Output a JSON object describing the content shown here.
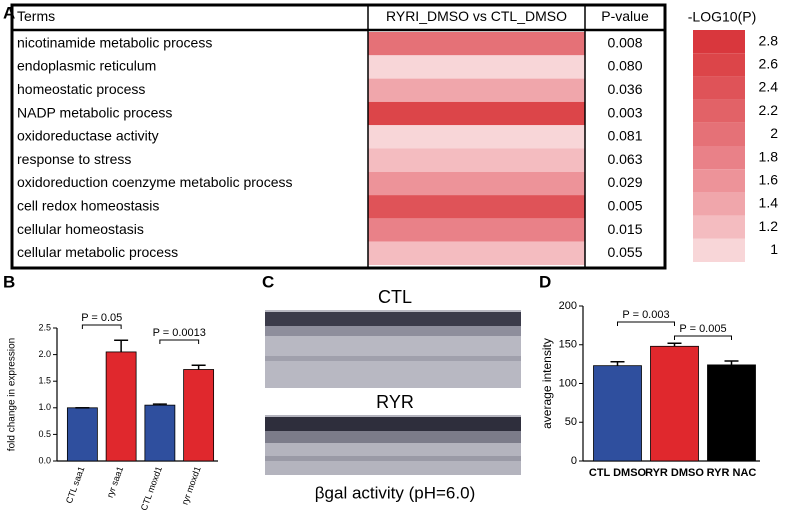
{
  "panel_labels": [
    "A",
    "B",
    "C",
    "D"
  ],
  "table": {
    "header": [
      "Terms",
      "RYRI_DMSO vs CTL_DMSO",
      "P-value"
    ],
    "rows": [
      [
        "nicotinamide metabolic process",
        "0.008"
      ],
      [
        "endoplasmic reticulum",
        "0.080"
      ],
      [
        "homeostatic process",
        "0.036"
      ],
      [
        "NADP metabolic process",
        "0.003"
      ],
      [
        "oxidoreductase activity",
        "0.081"
      ],
      [
        "response to stress",
        "0.063"
      ],
      [
        "oxidoreduction coenzyme metabolic process",
        "0.029"
      ],
      [
        "cell redox homeostasis",
        "0.005"
      ],
      [
        "cellular homeostasis",
        "0.015"
      ],
      [
        "cellular metabolic process",
        "0.055"
      ]
    ]
  },
  "legend": {
    "title": "-LOG10(P)",
    "items": [
      {
        "value": 2.8,
        "color": "#d9373d"
      },
      {
        "value": 2.6,
        "color": "#dc4549"
      },
      {
        "value": 2.4,
        "color": "#df5358"
      },
      {
        "value": 2.2,
        "color": "#e26267"
      },
      {
        "value": 2,
        "color": "#e57177"
      },
      {
        "value": 1.8,
        "color": "#e98188"
      },
      {
        "value": 1.6,
        "color": "#ed9399"
      },
      {
        "value": 1.4,
        "color": "#f0a6ab"
      },
      {
        "value": 1.2,
        "color": "#f4bcc0"
      },
      {
        "value": 1,
        "color": "#f8d6d8"
      }
    ]
  },
  "image_panel": {
    "labels": [
      "CTL",
      "RYR"
    ],
    "caption": "βgal activity (pH=6.0)"
  },
  "chart_data": [
    {
      "type": "bar",
      "ylabel": "fold change in expression",
      "categories": [
        "CTL saa1",
        "ryr saa1",
        "CTL moxd1",
        "ryr moxd1"
      ],
      "values": [
        1.0,
        2.05,
        1.05,
        1.72
      ],
      "errors": [
        0,
        0.22,
        0.02,
        0.08
      ],
      "colors": [
        "#2f4f9e",
        "#e0282d",
        "#2f4f9e",
        "#e0282d"
      ],
      "ylim": [
        0,
        2.5
      ],
      "yticks": [
        {
          "value": 0,
          "label": "0.0"
        },
        {
          "value": 0.5,
          "label": "0.5"
        },
        {
          "value": 1,
          "label": "1.0"
        },
        {
          "value": 1.5,
          "label": "1.5"
        },
        {
          "value": 2,
          "label": "2.0"
        },
        {
          "value": 2.5,
          "label": "2.5"
        }
      ],
      "annotations": [
        "P = 0.05",
        "P = 0.0013"
      ]
    },
    {
      "type": "bar",
      "ylabel": "average intensity",
      "categories": [
        "CTL DMSO",
        "RYR DMSO",
        "RYR NAC"
      ],
      "values": [
        123,
        148,
        124
      ],
      "errors": [
        5,
        4,
        5
      ],
      "colors": [
        "#2f4f9e",
        "#e0282d",
        "#000000"
      ],
      "ylim": [
        0,
        200
      ],
      "yticks": [
        0,
        50,
        100,
        150,
        200
      ],
      "annotations": [
        "P = 0.003",
        "P = 0.005"
      ]
    }
  ]
}
